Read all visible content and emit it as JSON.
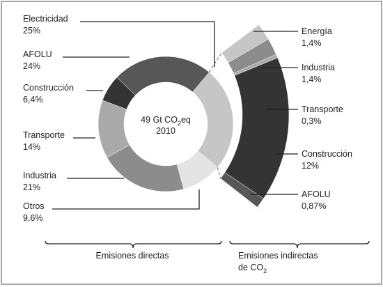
{
  "chart_data": {
    "type": "donut",
    "center_text": {
      "prefix": "49 Gt CO",
      "subscript": "2",
      "suffix": "eq",
      "year": "2010"
    },
    "categories": [
      "Electricidad",
      "Otros",
      "Industria",
      "Transporte",
      "Construcción",
      "AFOLU"
    ],
    "values": [
      25,
      9.6,
      21,
      14,
      6.4,
      24
    ],
    "value_labels": [
      "25%",
      "9,6%",
      "21%",
      "14%",
      "6,4%",
      "24%"
    ],
    "colors": [
      "#c6c6c6",
      "#e4e4e4",
      "#8c8c8c",
      "#aaaaaa",
      "#343434",
      "#575757"
    ],
    "breakout": {
      "categories": [
        "Energía",
        "Industria",
        "Transporte",
        "Construcción",
        "AFOLU"
      ],
      "values": [
        1.4,
        1.4,
        0.3,
        12,
        0.87
      ],
      "value_labels": [
        "1,4%",
        "1,4%",
        "0,3%",
        "12%",
        "0,87%"
      ],
      "colors": [
        "#c6c6c6",
        "#8c8c8c",
        "#aaaaaa",
        "#343434",
        "#575757"
      ]
    },
    "footer": {
      "direct": "Emisiones directas",
      "indirect_line1": "Emisiones indirectas",
      "indirect_prefix": "de CO",
      "indirect_subscript": "2"
    }
  }
}
